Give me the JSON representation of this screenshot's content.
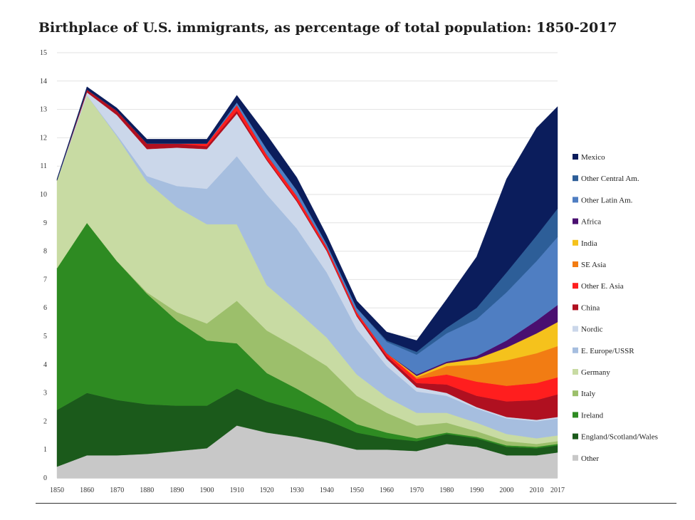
{
  "chart_data": {
    "type": "area",
    "title": "Birthplace of U.S. immigrants, as percentage of total population: 1850-2017",
    "xlabel": "",
    "ylabel": "",
    "x": [
      1850,
      1860,
      1870,
      1880,
      1890,
      1900,
      1910,
      1920,
      1930,
      1940,
      1950,
      1960,
      1970,
      1980,
      1990,
      2000,
      2010,
      2017
    ],
    "ylim": [
      0,
      15
    ],
    "yticks": [
      0,
      1,
      2,
      3,
      4,
      5,
      6,
      7,
      8,
      9,
      10,
      11,
      12,
      13,
      14,
      15
    ],
    "xticks": [
      "1850",
      "1860",
      "1870",
      "1880",
      "1890",
      "1900",
      "1910",
      "1920",
      "1930",
      "1940",
      "1950",
      "1960",
      "1970",
      "1980",
      "1990",
      "2000",
      "2010",
      "2017"
    ],
    "stacked": true,
    "legend_position": "right",
    "series": [
      {
        "name": "Other",
        "color": "#c8c8c8",
        "values": [
          0.4,
          0.8,
          0.8,
          0.85,
          0.95,
          1.05,
          1.85,
          1.6,
          1.45,
          1.25,
          1.0,
          1.0,
          0.95,
          1.2,
          1.1,
          0.8,
          0.8,
          0.9
        ]
      },
      {
        "name": "England/Scotland/Wales",
        "color": "#1b5a1b",
        "values": [
          2.0,
          2.2,
          1.95,
          1.75,
          1.6,
          1.5,
          1.3,
          1.1,
          0.95,
          0.8,
          0.6,
          0.4,
          0.35,
          0.35,
          0.3,
          0.3,
          0.25,
          0.25
        ]
      },
      {
        "name": "Ireland",
        "color": "#2e8b22",
        "values": [
          5.0,
          6.0,
          4.9,
          3.9,
          3.0,
          2.3,
          1.6,
          1.0,
          0.75,
          0.5,
          0.3,
          0.2,
          0.1,
          0.05,
          0.05,
          0.05,
          0.05,
          0.05
        ]
      },
      {
        "name": "Italy",
        "color": "#9cbf6b",
        "values": [
          0.0,
          0.0,
          0.0,
          0.05,
          0.3,
          0.6,
          1.5,
          1.5,
          1.45,
          1.4,
          1.0,
          0.7,
          0.45,
          0.35,
          0.2,
          0.15,
          0.1,
          0.1
        ]
      },
      {
        "name": "Germany",
        "color": "#c8dba3",
        "values": [
          3.1,
          4.5,
          4.4,
          3.9,
          3.7,
          3.5,
          2.7,
          1.6,
          1.3,
          1.0,
          0.75,
          0.55,
          0.45,
          0.35,
          0.3,
          0.25,
          0.2,
          0.2
        ]
      },
      {
        "name": "E. Europe/USSR",
        "color": "#a6bedf",
        "values": [
          0.0,
          0.0,
          0.05,
          0.2,
          0.75,
          1.25,
          2.4,
          3.2,
          2.9,
          2.3,
          1.6,
          1.1,
          0.75,
          0.6,
          0.5,
          0.55,
          0.6,
          0.6
        ]
      },
      {
        "name": "Nordic",
        "color": "#cbd7ea",
        "values": [
          0.0,
          0.1,
          0.7,
          0.95,
          1.35,
          1.4,
          1.5,
          1.2,
          0.95,
          0.75,
          0.45,
          0.25,
          0.15,
          0.1,
          0.05,
          0.05,
          0.05,
          0.05
        ]
      },
      {
        "name": "China",
        "color": "#b01020",
        "values": [
          0.0,
          0.1,
          0.15,
          0.2,
          0.15,
          0.1,
          0.1,
          0.05,
          0.05,
          0.05,
          0.05,
          0.1,
          0.15,
          0.3,
          0.4,
          0.55,
          0.7,
          0.8
        ]
      },
      {
        "name": "Other E. Asia",
        "color": "#ff1e1e",
        "values": [
          0.0,
          0.0,
          0.0,
          0.0,
          0.0,
          0.1,
          0.2,
          0.15,
          0.15,
          0.1,
          0.1,
          0.1,
          0.15,
          0.35,
          0.5,
          0.55,
          0.6,
          0.6
        ]
      },
      {
        "name": "SE Asia",
        "color": "#f27c13",
        "values": [
          0.0,
          0.0,
          0.0,
          0.0,
          0.0,
          0.0,
          0.0,
          0.0,
          0.0,
          0.0,
          0.0,
          0.0,
          0.05,
          0.3,
          0.6,
          0.9,
          1.05,
          1.1
        ]
      },
      {
        "name": "India",
        "color": "#f5c21c",
        "values": [
          0.0,
          0.0,
          0.0,
          0.0,
          0.0,
          0.0,
          0.0,
          0.0,
          0.0,
          0.0,
          0.0,
          0.0,
          0.05,
          0.1,
          0.2,
          0.45,
          0.7,
          0.85
        ]
      },
      {
        "name": "Africa",
        "color": "#4a0f70",
        "values": [
          0.0,
          0.0,
          0.0,
          0.0,
          0.0,
          0.0,
          0.0,
          0.0,
          0.0,
          0.0,
          0.0,
          0.0,
          0.05,
          0.05,
          0.1,
          0.25,
          0.45,
          0.6
        ]
      },
      {
        "name": "Other Latin Am.",
        "color": "#4f7ec2",
        "values": [
          0.0,
          0.0,
          0.0,
          0.0,
          0.0,
          0.0,
          0.1,
          0.2,
          0.2,
          0.1,
          0.15,
          0.4,
          0.7,
          1.0,
          1.3,
          1.7,
          2.1,
          2.4
        ]
      },
      {
        "name": "Other Central Am.",
        "color": "#2d5e98",
        "values": [
          0.0,
          0.0,
          0.0,
          0.0,
          0.0,
          0.0,
          0.0,
          0.0,
          0.0,
          0.0,
          0.0,
          0.05,
          0.1,
          0.2,
          0.4,
          0.7,
          0.9,
          1.0
        ]
      },
      {
        "name": "Mexico",
        "color": "#0b1d5c",
        "values": [
          0.05,
          0.1,
          0.1,
          0.15,
          0.15,
          0.15,
          0.25,
          0.5,
          0.45,
          0.3,
          0.25,
          0.3,
          0.4,
          1.0,
          1.8,
          3.3,
          3.8,
          3.6
        ]
      }
    ]
  }
}
